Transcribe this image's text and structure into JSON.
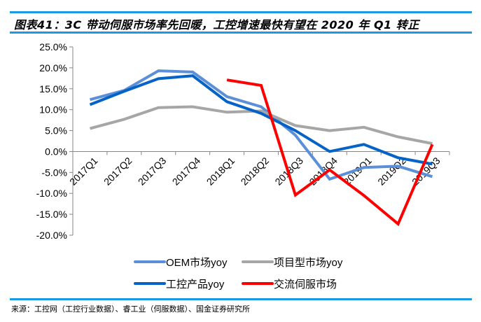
{
  "header": {
    "title": "图表41：3C 带动伺服市场率先回暖，工控增速最快有望在 2020 年 Q1 转正"
  },
  "footer": {
    "source": "来源：工控网（工控行业数据）、睿工业（伺服数据）、国金证券研究所"
  },
  "colors": {
    "rule": "#1A9AE0"
  },
  "chart_data": {
    "type": "line",
    "title": "",
    "xlabel": "",
    "ylabel": "",
    "categories": [
      "2017Q1",
      "2017Q2",
      "2017Q3",
      "2017Q4",
      "2018Q1",
      "2018Q2",
      "2018Q3",
      "2018Q4",
      "2019Q1",
      "2019Q2",
      "2019Q3"
    ],
    "ylim": [
      -20,
      25
    ],
    "yticks": [
      -20,
      -15,
      -10,
      -5,
      0,
      5,
      10,
      15,
      20,
      25
    ],
    "ytick_labels": [
      "-20.0%",
      "-15.0%",
      "-10.0%",
      "-5.0%",
      "0.0%",
      "5.0%",
      "10.0%",
      "15.0%",
      "20.0%",
      "25.0%"
    ],
    "grid": false,
    "legend_position": "bottom",
    "series": [
      {
        "name": "OEM市场yoy",
        "color": "#5B8FD8",
        "values": [
          12.4,
          14.6,
          19.3,
          19.0,
          13.1,
          10.7,
          3.9,
          -6.6,
          -3.8,
          -3.5,
          -6.0
        ]
      },
      {
        "name": "项目型市场yoy",
        "color": "#A6A6A6",
        "values": [
          5.5,
          7.7,
          10.5,
          10.7,
          9.4,
          9.7,
          6.2,
          5.0,
          5.8,
          3.5,
          1.9
        ]
      },
      {
        "name": "工控产品yoy",
        "color": "#0563C8",
        "values": [
          11.2,
          14.4,
          17.4,
          18.1,
          11.9,
          9.1,
          5.0,
          0.0,
          1.7,
          -1.5,
          -3.0
        ]
      },
      {
        "name": "交流伺服市场",
        "color": "#FF0000",
        "values": [
          null,
          null,
          null,
          null,
          17.1,
          15.8,
          -10.4,
          -4.4,
          -10.5,
          -17.3,
          1.7
        ]
      }
    ]
  }
}
